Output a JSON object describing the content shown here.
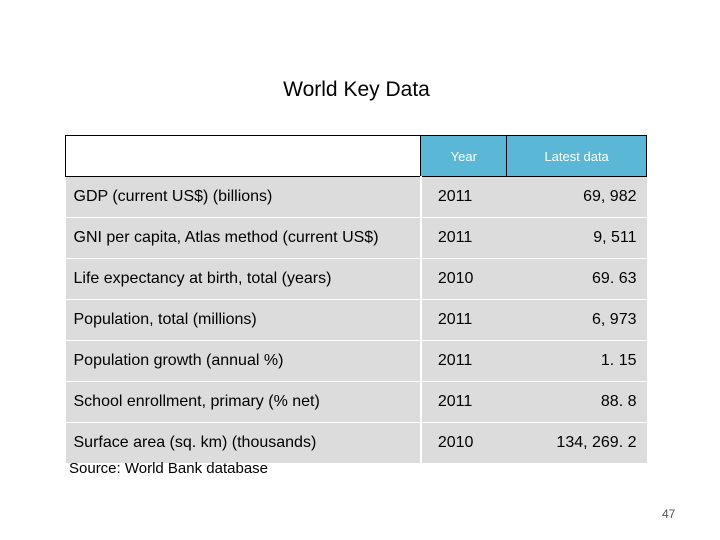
{
  "slide": {
    "title": "World Key Data",
    "source": "Source: World Bank database",
    "page_number": "47"
  },
  "table": {
    "headers": {
      "label": "",
      "year": "Year",
      "latest": "Latest data"
    },
    "rows": [
      {
        "label": "GDP (current US$) (billions)",
        "year": "2011",
        "value": "69, 982"
      },
      {
        "label": "GNI per capita, Atlas method (current US$)",
        "year": "2011",
        "value": "9, 511"
      },
      {
        "label": "Life expectancy at birth, total (years)",
        "year": "2010",
        "value": "69. 63"
      },
      {
        "label": "Population, total (millions)",
        "year": "2011",
        "value": "6, 973"
      },
      {
        "label": "Population growth (annual %)",
        "year": "2011",
        "value": "1. 15"
      },
      {
        "label": "School enrollment, primary (% net)",
        "year": "2011",
        "value": "88. 8"
      },
      {
        "label": "Surface area (sq. km) (thousands)",
        "year": "2010",
        "value": "134, 269. 2"
      }
    ]
  }
}
